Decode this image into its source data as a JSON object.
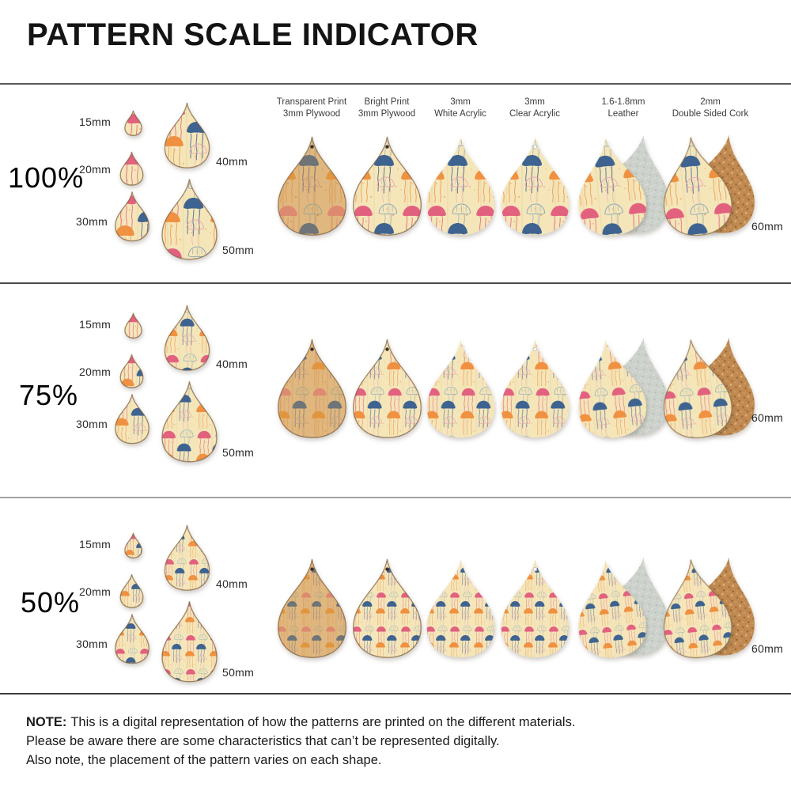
{
  "title": "PATTERN SCALE INDICATOR",
  "sections": [
    {
      "scale_label": "100%"
    },
    {
      "scale_label": "75%"
    },
    {
      "scale_label": "50%"
    }
  ],
  "size_labels": [
    "15mm",
    "20mm",
    "30mm",
    "40mm",
    "50mm"
  ],
  "material_size_label": "60mm",
  "materials": [
    {
      "line1": "Transparent Print",
      "line2": "3mm Plywood"
    },
    {
      "line1": "Bright Print",
      "line2": "3mm Plywood"
    },
    {
      "line1": "3mm",
      "line2": "White Acrylic"
    },
    {
      "line1": "3mm",
      "line2": "Clear Acrylic"
    },
    {
      "line1": "1.6-1.8mm",
      "line2": "Leather"
    },
    {
      "line1": "2mm",
      "line2": "Double Sided Cork"
    }
  ],
  "note": {
    "label": "NOTE:",
    "lines": [
      "This is a digital representation of how the patterns are printed on the different materials.",
      "Please be aware there are some characteristics that can’t be represented digitally.",
      "Also note, the placement of the pattern varies on each shape."
    ]
  },
  "colors": {
    "pattern_cream": "#f5e6ba",
    "pattern_pink": "#e2617e",
    "pattern_orange": "#ef9140",
    "pattern_blue": "#3e6390",
    "pattern_outline_pink": "#e8a7b2",
    "pattern_outline_blue": "#86a7b8",
    "plywood_tan": "#e0b77e",
    "muted_salmon": "#dd8a70",
    "muted_orange": "#e2953f",
    "muted_gray_blue": "#6f7478",
    "leather_gray": "#ccd2cb",
    "cork_brown": "#c08a52",
    "separator_dark": "#4a4a4a",
    "separator_light": "#a2a2a2"
  }
}
